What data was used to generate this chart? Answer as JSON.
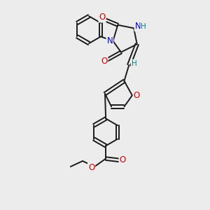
{
  "background_color": "#ececec",
  "bond_color": "#1a1a1a",
  "oxygen_color": "#cc0000",
  "nitrogen_color": "#0000cc",
  "hydrogen_color": "#008080",
  "lw": 1.4,
  "fs": 8.5,
  "xlim": [
    0,
    10
  ],
  "ylim": [
    0,
    13
  ]
}
